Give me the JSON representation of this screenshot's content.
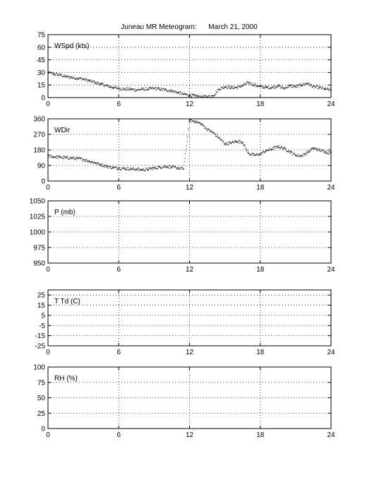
{
  "title": "Juneau MR Meteogram:      March 21, 2000",
  "chart_data": [
    {
      "type": "scatter",
      "label": "WSpd (kts)",
      "x_ticks": [
        0,
        6,
        12,
        18,
        24
      ],
      "y_ticks": [
        0,
        15,
        30,
        45,
        60,
        75
      ],
      "xlim": [
        0,
        24
      ],
      "ylim": [
        0,
        75
      ],
      "grid": true,
      "series": [
        {
          "x": [
            0,
            0.5,
            1,
            1.5,
            2,
            2.5,
            3,
            3.5,
            4,
            4.5,
            5,
            5.5,
            6,
            6.5,
            7,
            7.5,
            8,
            8.5,
            9,
            9.5,
            10,
            10.5,
            11,
            11.5,
            12,
            12.5,
            13,
            13.5,
            14,
            14.5,
            15,
            15.5,
            16,
            16.5,
            17,
            17.5,
            18,
            18.5,
            19,
            19.5,
            20,
            20.5,
            21,
            21.5,
            22,
            22.5,
            23,
            23.5,
            24
          ],
          "y": [
            30,
            28,
            27,
            25,
            24,
            23,
            22,
            20,
            18,
            16,
            14,
            12,
            11,
            10,
            10,
            9,
            10,
            10,
            11,
            10,
            9,
            8,
            6,
            4,
            3,
            2,
            1,
            1,
            2,
            10,
            13,
            12,
            12,
            14,
            18,
            15,
            13,
            12,
            12,
            14,
            11,
            14,
            13,
            15,
            17,
            13,
            12,
            10,
            9
          ]
        }
      ]
    },
    {
      "type": "scatter",
      "label": "WDir",
      "x_ticks": [
        0,
        6,
        12,
        18,
        24
      ],
      "y_ticks": [
        0,
        90,
        180,
        270,
        360
      ],
      "xlim": [
        0,
        24
      ],
      "ylim": [
        0,
        360
      ],
      "grid": true,
      "series": [
        {
          "x": [
            0,
            0.5,
            1,
            1.5,
            2,
            2.5,
            3,
            3.5,
            4,
            4.5,
            5,
            5.5,
            6,
            6.5,
            7,
            7.5,
            8,
            8.5,
            9,
            9.5,
            10,
            10.5,
            11,
            11.5,
            12,
            12.5,
            13,
            13.5,
            14,
            14.5,
            15,
            15.5,
            16,
            16.5,
            17,
            17.5,
            18,
            18.5,
            19,
            19.5,
            20,
            20.5,
            21,
            21.5,
            22,
            22.5,
            23,
            23.5,
            24
          ],
          "y": [
            145,
            140,
            138,
            135,
            133,
            130,
            125,
            115,
            105,
            95,
            85,
            78,
            75,
            72,
            70,
            68,
            65,
            68,
            75,
            80,
            85,
            80,
            75,
            70,
            350,
            345,
            330,
            300,
            280,
            250,
            215,
            220,
            230,
            225,
            160,
            150,
            155,
            175,
            185,
            200,
            190,
            170,
            150,
            145,
            165,
            190,
            180,
            170,
            160
          ]
        }
      ]
    },
    {
      "type": "scatter",
      "label": "P (mb)",
      "x_ticks": [
        0,
        6,
        12,
        18,
        24
      ],
      "y_ticks": [
        950,
        975,
        1000,
        1025,
        1050
      ],
      "xlim": [
        0,
        24
      ],
      "ylim": [
        950,
        1050
      ],
      "grid": true,
      "series": []
    },
    {
      "type": "scatter",
      "label": "T Td (C)",
      "x_ticks": [
        0,
        6,
        12,
        18,
        24
      ],
      "y_ticks": [
        -25,
        -15,
        -5,
        5,
        15,
        25
      ],
      "xlim": [
        0,
        24
      ],
      "ylim": [
        -25,
        30
      ],
      "grid": true,
      "series": []
    },
    {
      "type": "scatter",
      "label": "RH (%)",
      "x_ticks": [
        0,
        6,
        12,
        18,
        24
      ],
      "y_ticks": [
        0,
        25,
        50,
        75,
        100
      ],
      "xlim": [
        0,
        24
      ],
      "ylim": [
        0,
        100
      ],
      "grid": true,
      "series": []
    }
  ]
}
